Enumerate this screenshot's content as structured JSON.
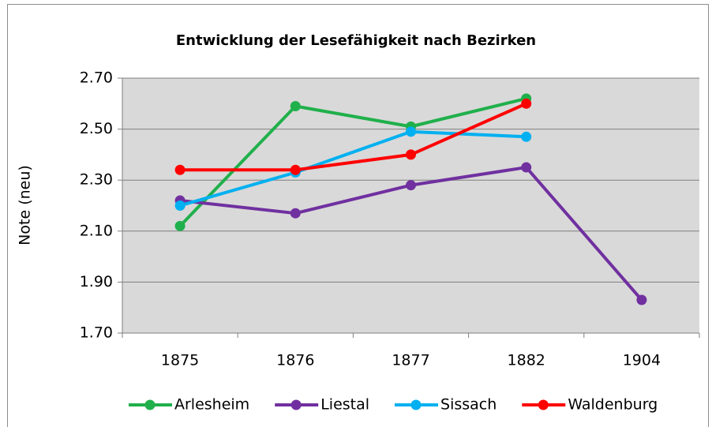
{
  "chart_data": {
    "type": "line",
    "title": "Entwicklung der Lesefähigkeit nach Bezirken",
    "y_label": "Note (neu)",
    "categories": [
      "1875",
      "1876",
      "1877",
      "1882",
      "1904"
    ],
    "series": [
      {
        "name": "Arlesheim",
        "color": "#20b04b",
        "values": [
          2.12,
          2.59,
          2.51,
          2.62,
          null
        ]
      },
      {
        "name": "Liestal",
        "color": "#7030a0",
        "values": [
          2.22,
          2.17,
          2.28,
          2.35,
          1.83
        ]
      },
      {
        "name": "Sissach",
        "color": "#00b0f0",
        "values": [
          2.2,
          2.33,
          2.49,
          2.47,
          null
        ]
      },
      {
        "name": "Waldenburg",
        "color": "#ff0000",
        "values": [
          2.34,
          2.34,
          2.4,
          2.6,
          null
        ]
      }
    ],
    "ylim": [
      1.7,
      2.7
    ],
    "yticks": [
      {
        "value": 1.7,
        "label": "1.70"
      },
      {
        "value": 1.9,
        "label": "1.90"
      },
      {
        "value": 2.1,
        "label": "2.10"
      },
      {
        "value": 2.3,
        "label": "2.30"
      },
      {
        "value": 2.5,
        "label": "2.50"
      },
      {
        "value": 2.7,
        "label": "2.70"
      }
    ],
    "grid": true,
    "legend": "bottom"
  }
}
